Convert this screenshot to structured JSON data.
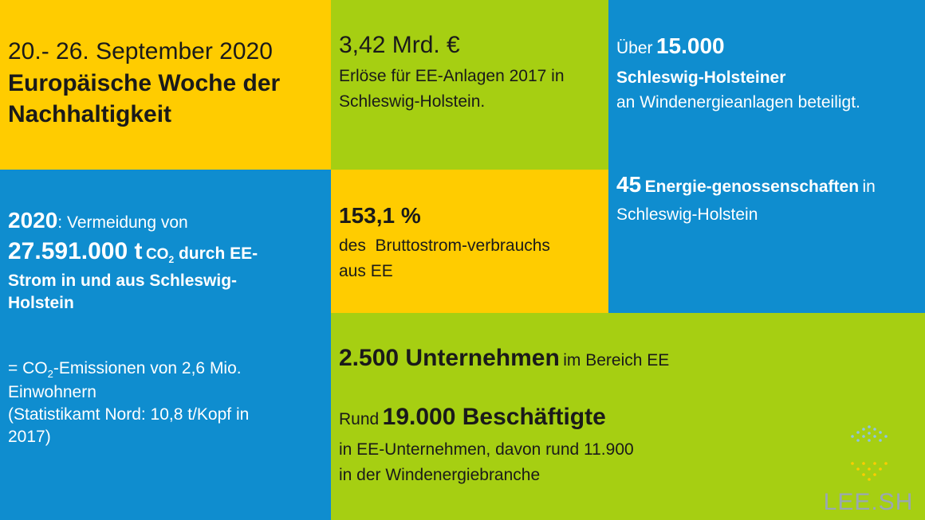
{
  "tile_date": {
    "dates": "20.- 26. September 2020",
    "title_line1": "Europäische Woche der",
    "title_line2": "Nachhaltigkeit"
  },
  "tile_revenue": {
    "amount": "3,42 Mrd. €",
    "line1": "Erlöse für EE-Anlagen 2017 in",
    "line2": "Schleswig-Holstein."
  },
  "tile_participation": {
    "prefix": "Über",
    "number": "15.000",
    "who": "Schleswig-Holsteiner",
    "line": "an Windenergieanlagen beteiligt.",
    "coop_number": "45",
    "coop_label": "Energie-genossenschaften",
    "coop_in": "in",
    "coop_place": "Schleswig-Holstein"
  },
  "tile_co2": {
    "year": "2020",
    "lead": ": Vermeidung von",
    "amount": "27.591.000 t",
    "co2": "CO",
    "sub2": "2",
    "after": " durch EE-",
    "line3": "Strom in und aus Schleswig-",
    "line4": "Holstein",
    "eq_prefix": "= CO",
    "eq_sub": "2",
    "eq_line1_rest": "-Emissionen von 2,6 Mio.",
    "eq_line2": "Einwohnern",
    "eq_line3": "(Statistikamt Nord: 10,8 t/Kopf in",
    "eq_line4": "2017)"
  },
  "tile_percent": {
    "value": "153,1 %",
    "line1": "des  Bruttostrom-verbrauchs",
    "line2": "aus EE"
  },
  "tile_jobs": {
    "companies_number": "2.500 Unternehmen",
    "companies_rest": "im Bereich EE",
    "rund": "Rund",
    "employees": "19.000 Beschäftigte",
    "line1": "in EE-Unternehmen, davon rund 11.900",
    "line2": "in der Windenergiebranche"
  },
  "logo": {
    "text": "LEE.SH",
    "dot_colors": [
      "#8fc3e6",
      "#a6cf12",
      "#ffcc00"
    ]
  },
  "colors": {
    "yellow": "#ffcc00",
    "green": "#a6cf12",
    "blue": "#0f8dcf"
  }
}
